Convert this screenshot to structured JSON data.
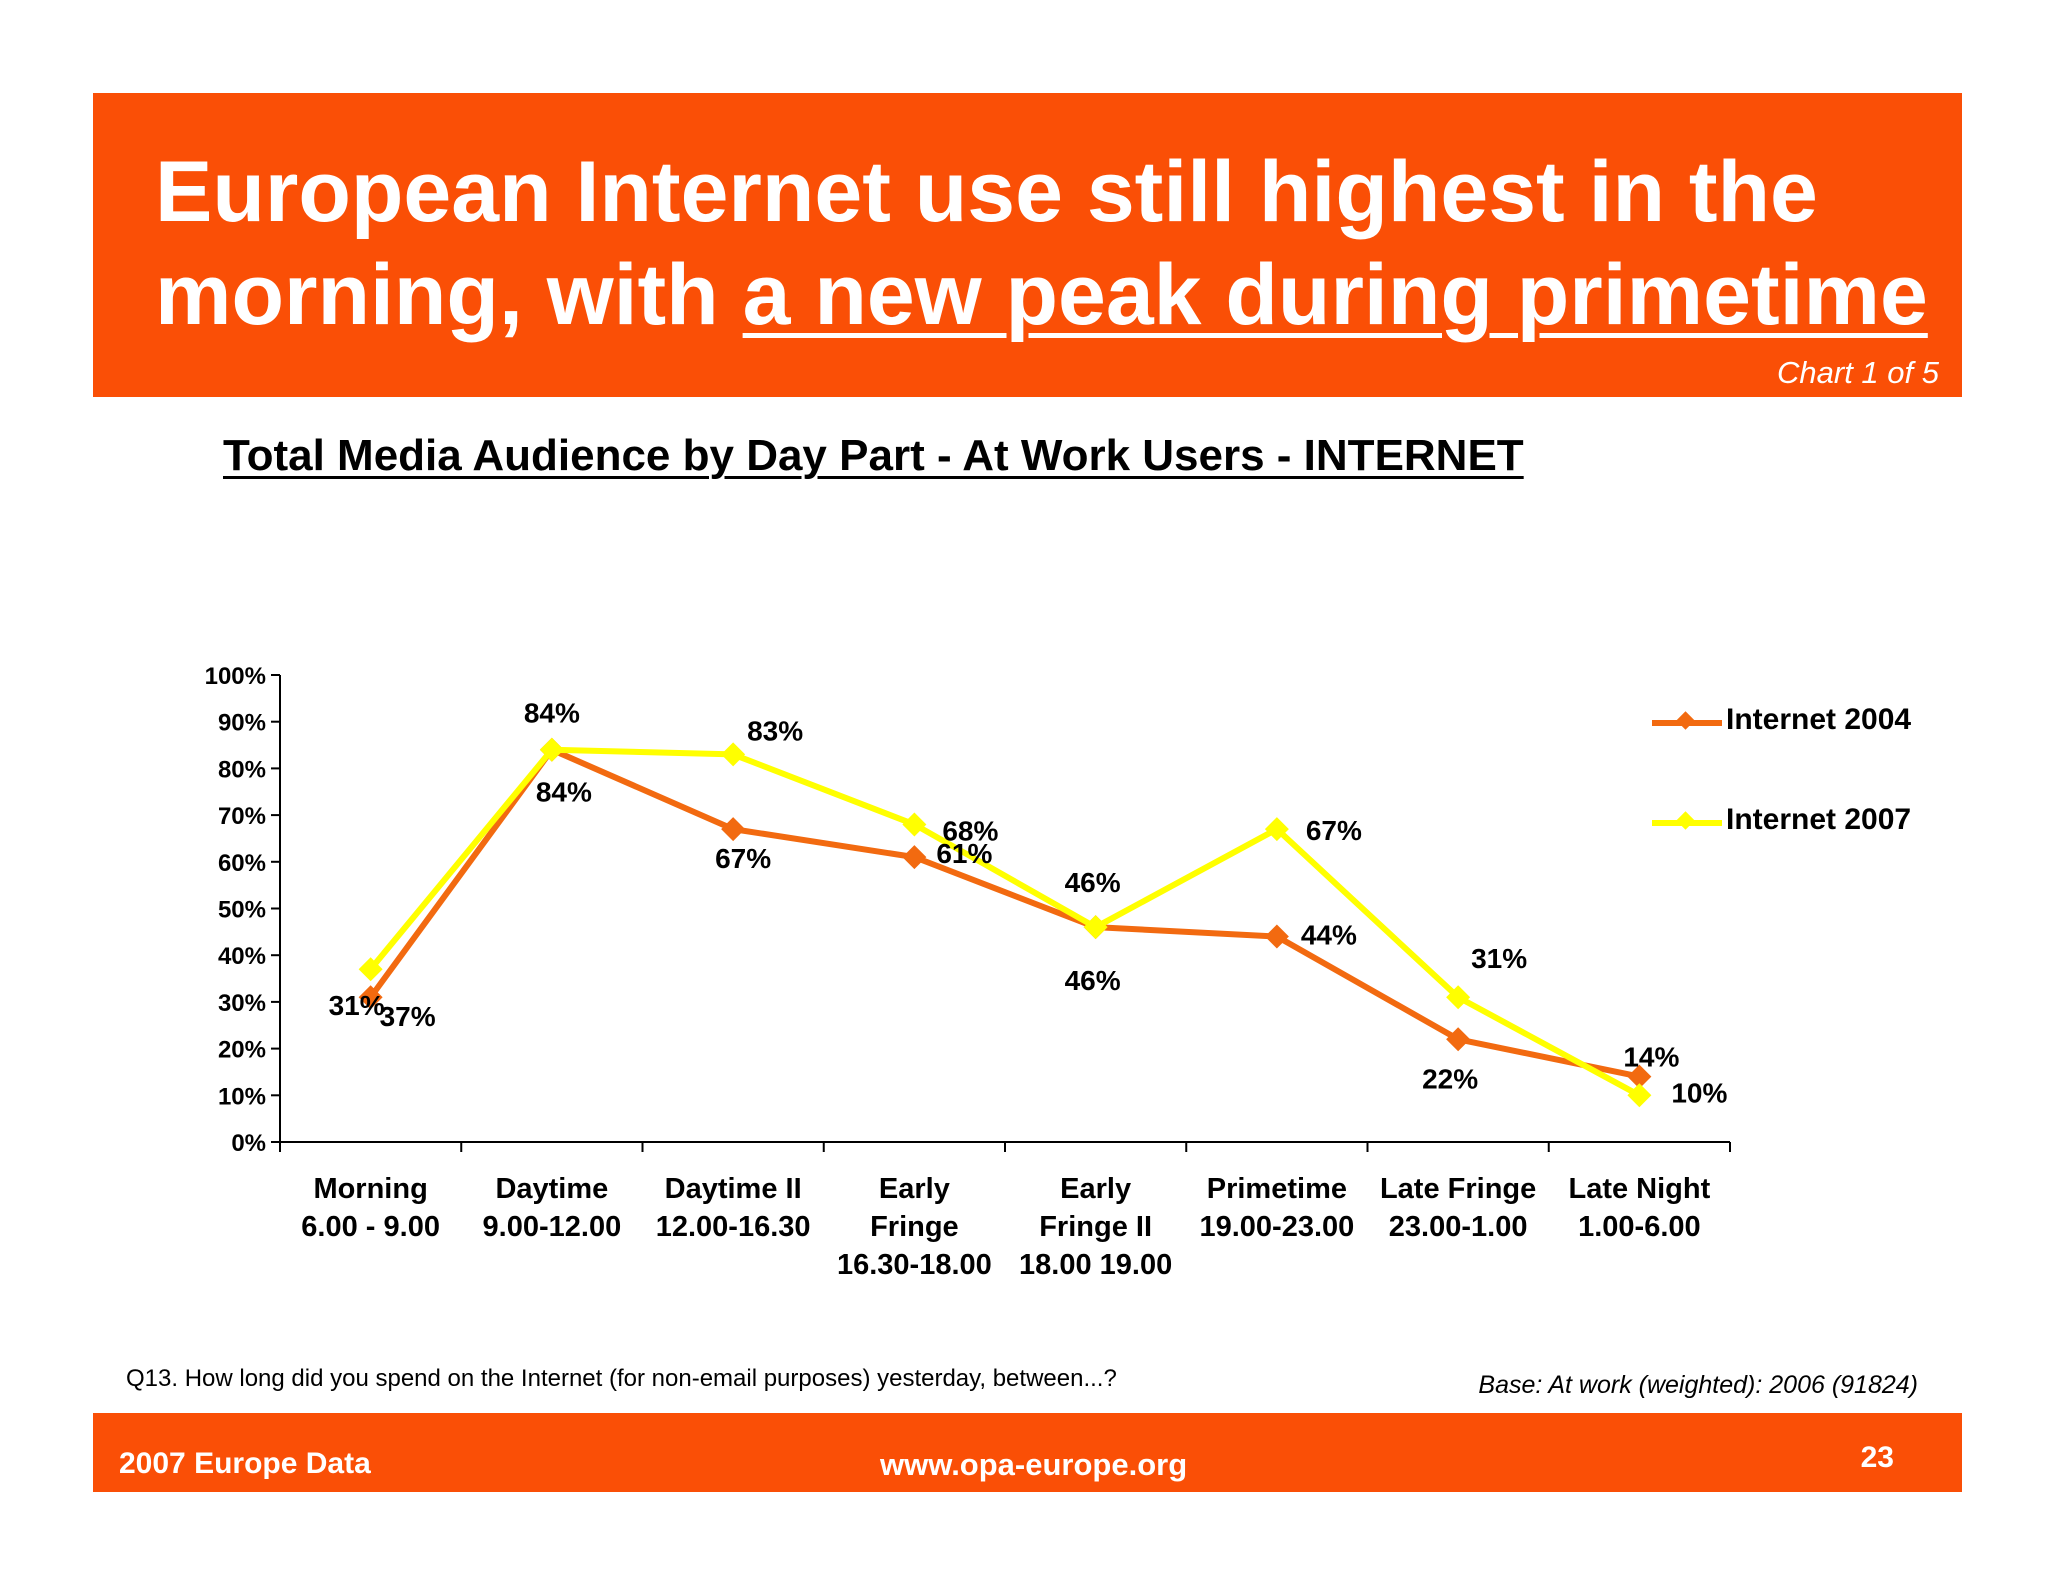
{
  "header": {
    "title_line1": "European Internet use still highest in the",
    "title_line2_plain": "morning, with ",
    "title_line2_underlined": "a new peak during primetime",
    "chart_counter": "Chart 1 of 5",
    "background_color": "#fa4f06"
  },
  "chart_data": {
    "type": "line",
    "title": "Total Media Audience by Day Part - At Work Users - INTERNET",
    "categories": [
      [
        "Morning",
        "6.00 - 9.00"
      ],
      [
        "Daytime",
        "9.00-12.00"
      ],
      [
        "Daytime II",
        "12.00-16.30"
      ],
      [
        "Early",
        "Fringe",
        "16.30-18.00"
      ],
      [
        "Early",
        "Fringe II",
        "18.00 19.00"
      ],
      [
        "Primetime",
        "19.00-23.00"
      ],
      [
        "Late Fringe",
        "23.00-1.00"
      ],
      [
        "Late Night",
        "1.00-6.00"
      ]
    ],
    "series": [
      {
        "name": "Internet 2004",
        "color": "#f26a10",
        "values": [
          31,
          84,
          67,
          61,
          46,
          44,
          22,
          14
        ],
        "labels": [
          "31%",
          "84%",
          "67%",
          "61%",
          "46%",
          "44%",
          "22%",
          "14%"
        ]
      },
      {
        "name": "Internet 2007",
        "color": "#ffff00",
        "values": [
          37,
          84,
          83,
          68,
          46,
          67,
          31,
          10
        ],
        "labels": [
          "37%",
          "84%",
          "83%",
          "68%",
          "46%",
          "67%",
          "31%",
          "10%"
        ]
      }
    ],
    "ylim": [
      0,
      100
    ],
    "yticks": [
      0,
      10,
      20,
      30,
      40,
      50,
      60,
      70,
      80,
      90,
      100
    ],
    "ytick_labels": [
      "0%",
      "10%",
      "20%",
      "30%",
      "40%",
      "50%",
      "60%",
      "70%",
      "80%",
      "90%",
      "100%"
    ],
    "grid": false,
    "legend_position": "right"
  },
  "notes": {
    "question": "Q13. How long did you spend on the Internet (for non-email purposes) yesterday, between...?",
    "base": "Base: At work (weighted): 2006 (91824)"
  },
  "footer": {
    "left": "2007 Europe Data",
    "center": "www.opa-europe.org",
    "page_number": "23"
  }
}
